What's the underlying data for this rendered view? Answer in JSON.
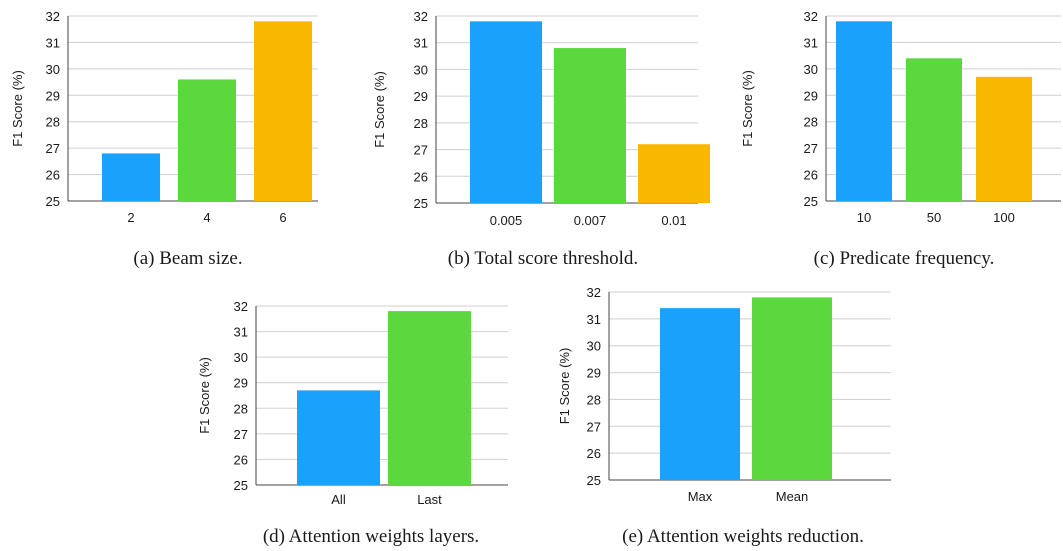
{
  "chart_data": [
    {
      "type": "bar",
      "caption": "(a) Beam size.",
      "ylabel": "F1 Score (%)",
      "xlabel": "",
      "ylim": [
        25,
        32
      ],
      "yticks": [
        25,
        26,
        27,
        28,
        29,
        30,
        31,
        32
      ],
      "categories": [
        "2",
        "4",
        "6"
      ],
      "values": [
        26.8,
        29.6,
        31.8
      ],
      "colors": [
        "#1aa1f9",
        "#5cd83f",
        "#f9b800"
      ],
      "grid": true
    },
    {
      "type": "bar",
      "caption": "(b) Total score threshold.",
      "ylabel": "F1 Score (%)",
      "xlabel": "",
      "ylim": [
        25,
        32
      ],
      "yticks": [
        25,
        26,
        27,
        28,
        29,
        30,
        31,
        32
      ],
      "categories": [
        "0.005",
        "0.007",
        "0.01"
      ],
      "values": [
        31.8,
        30.8,
        27.2
      ],
      "colors": [
        "#1aa1f9",
        "#5cd83f",
        "#f9b800"
      ],
      "grid": true
    },
    {
      "type": "bar",
      "caption": "(c) Predicate frequency.",
      "ylabel": "F1 Score (%)",
      "xlabel": "",
      "ylim": [
        25,
        32
      ],
      "yticks": [
        25,
        26,
        27,
        28,
        29,
        30,
        31,
        32
      ],
      "categories": [
        "10",
        "50",
        "100"
      ],
      "values": [
        31.8,
        30.4,
        29.7
      ],
      "colors": [
        "#1aa1f9",
        "#5cd83f",
        "#f9b800"
      ],
      "grid": true
    },
    {
      "type": "bar",
      "caption": "(d) Attention weights layers.",
      "ylabel": "F1 Score (%)",
      "xlabel": "",
      "ylim": [
        25,
        32
      ],
      "yticks": [
        25,
        26,
        27,
        28,
        29,
        30,
        31,
        32
      ],
      "categories": [
        "All",
        "Last"
      ],
      "values": [
        28.7,
        31.8
      ],
      "colors": [
        "#1aa1f9",
        "#5cd83f"
      ],
      "grid": true
    },
    {
      "type": "bar",
      "caption": "(e) Attention weights reduction.",
      "ylabel": "F1 Score (%)",
      "xlabel": "",
      "ylim": [
        25,
        32
      ],
      "yticks": [
        25,
        26,
        27,
        28,
        29,
        30,
        31,
        32
      ],
      "categories": [
        "Max",
        "Mean"
      ],
      "values": [
        31.4,
        31.8
      ],
      "colors": [
        "#1aa1f9",
        "#5cd83f"
      ],
      "grid": true
    }
  ]
}
